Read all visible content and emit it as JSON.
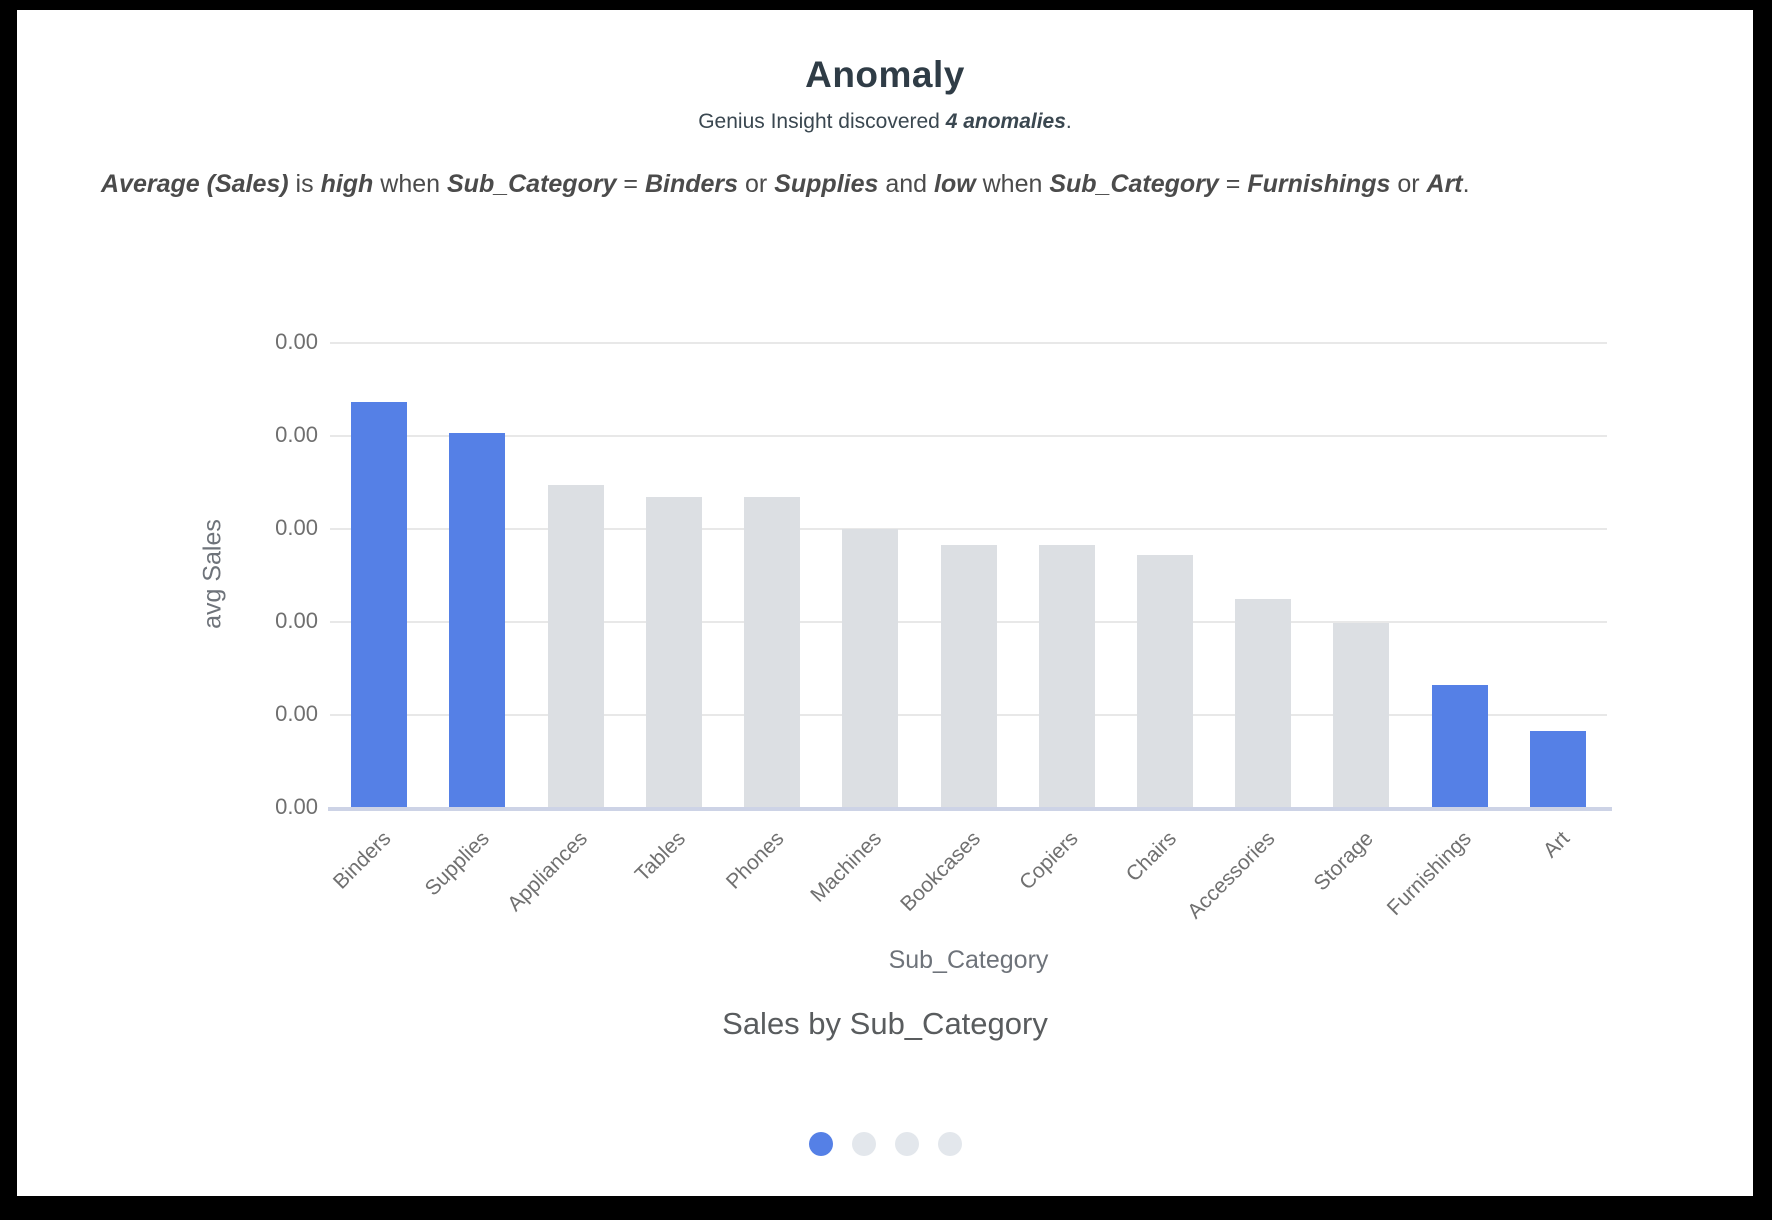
{
  "header": {
    "title": "Anomaly",
    "subtitle_segments": [
      {
        "text": "Genius Insight discovered ",
        "emph": false
      },
      {
        "text": "4 anomalies",
        "emph": true
      },
      {
        "text": ".",
        "emph": false
      }
    ]
  },
  "insight": {
    "segments": [
      {
        "text": "Average (Sales)",
        "emph": true
      },
      {
        "text": " is ",
        "emph": false
      },
      {
        "text": "high",
        "emph": true
      },
      {
        "text": " when ",
        "emph": false
      },
      {
        "text": "Sub_Category",
        "emph": true
      },
      {
        "text": " = ",
        "emph": false
      },
      {
        "text": "Binders",
        "emph": true
      },
      {
        "text": " or ",
        "emph": false
      },
      {
        "text": "Supplies",
        "emph": true
      },
      {
        "text": " and ",
        "emph": false
      },
      {
        "text": "low",
        "emph": true
      },
      {
        "text": " when ",
        "emph": false
      },
      {
        "text": "Sub_Category",
        "emph": true
      },
      {
        "text": " = ",
        "emph": false
      },
      {
        "text": "Furnishings",
        "emph": true
      },
      {
        "text": " or ",
        "emph": false
      },
      {
        "text": "Art",
        "emph": true
      },
      {
        "text": ".",
        "emph": false
      }
    ]
  },
  "chart_data": {
    "type": "bar",
    "title": "Sales by Sub_Category",
    "xlabel": "Sub_Category",
    "ylabel": "avg Sales",
    "categories": [
      "Binders",
      "Supplies",
      "Appliances",
      "Tables",
      "Phones",
      "Machines",
      "Bookcases",
      "Copiers",
      "Chairs",
      "Accessories",
      "Storage",
      "Furnishings",
      "Art"
    ],
    "values_fraction_of_yaxis": [
      0.871,
      0.804,
      0.692,
      0.667,
      0.667,
      0.598,
      0.563,
      0.563,
      0.542,
      0.447,
      0.396,
      0.262,
      0.163
    ],
    "anomaly_categories": [
      "Binders",
      "Supplies",
      "Furnishings",
      "Art"
    ],
    "y_tick_labels_top_to_bottom": [
      "0.00",
      "0.00",
      "0.00",
      "0.00",
      "0.00",
      "0.00"
    ],
    "grid": true,
    "legend": false,
    "colors": {
      "anomaly_bar": "#5580E6",
      "normal_bar": "#DCDFE3",
      "gridline": "#E8E8E8",
      "axis_line": "#CDD3E6"
    }
  },
  "pagination": {
    "dots": [
      {
        "label": "page-1",
        "active": true
      },
      {
        "label": "page-2",
        "active": false
      },
      {
        "label": "page-3",
        "active": false
      },
      {
        "label": "page-4",
        "active": false
      }
    ],
    "active_color": "#5580E6",
    "inactive_color": "#E3E7EC"
  }
}
